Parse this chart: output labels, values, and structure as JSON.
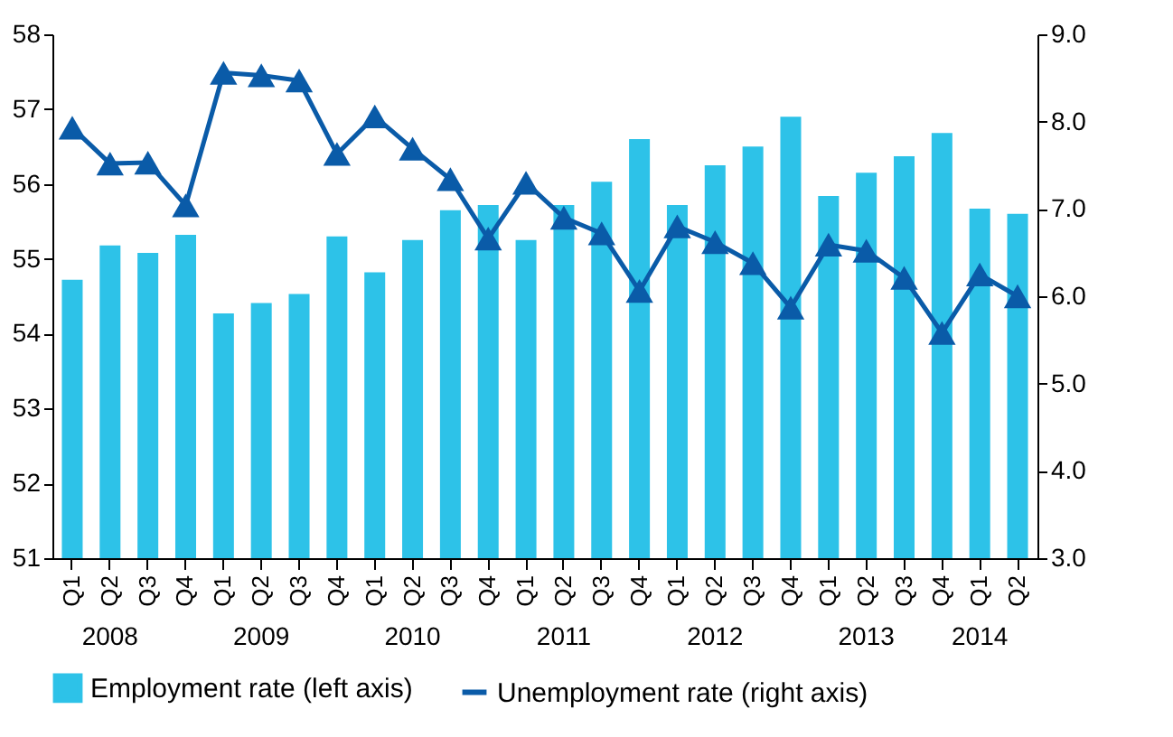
{
  "chart_data": {
    "type": "bar",
    "categories": [
      "Q1",
      "Q2",
      "Q3",
      "Q4",
      "Q1",
      "Q2",
      "Q3",
      "Q4",
      "Q1",
      "Q2",
      "Q3",
      "Q4",
      "Q1",
      "Q2",
      "Q3",
      "Q4",
      "Q1",
      "Q2",
      "Q3",
      "Q4",
      "Q1",
      "Q2",
      "Q3",
      "Q4",
      "Q1",
      "Q2"
    ],
    "annotations": [
      "2008",
      "2009",
      "2010",
      "2011",
      "2012",
      "2013",
      "2014"
    ],
    "series": [
      {
        "name": "Employment rate (left axis)",
        "color": "#2dc2e8",
        "values": [
          54.72,
          55.18,
          55.08,
          55.32,
          54.27,
          54.41,
          54.53,
          55.3,
          54.82,
          55.25,
          55.65,
          55.72,
          55.25,
          55.72,
          56.03,
          56.6,
          55.72,
          56.25,
          56.5,
          56.9,
          55.84,
          56.15,
          56.37,
          56.68,
          55.67,
          55.6
        ]
      },
      {
        "name": "Unemployment rate (right axis)",
        "type": "line",
        "axis": "y2",
        "color": "#0a5ba8",
        "marker": "triangle",
        "values": [
          7.93,
          7.52,
          7.53,
          7.04,
          8.56,
          8.53,
          8.47,
          7.63,
          8.06,
          7.69,
          7.34,
          6.66,
          7.3,
          6.9,
          6.72,
          6.06,
          6.8,
          6.62,
          6.38,
          5.87,
          6.59,
          6.52,
          6.21,
          5.58,
          6.25,
          6.0
        ]
      }
    ],
    "ylim": [
      51,
      58
    ],
    "yticks": [
      51,
      52,
      53,
      54,
      55,
      56,
      57,
      58
    ],
    "y2lim": [
      3,
      9
    ],
    "y2ticks": [
      {
        "value": 3,
        "label": "3.0"
      },
      {
        "value": 4,
        "label": "4.0"
      },
      {
        "value": 5,
        "label": "5.0"
      },
      {
        "value": 6,
        "label": "6.0"
      },
      {
        "value": 7,
        "label": "7.0"
      },
      {
        "value": 8,
        "label": "8.0"
      },
      {
        "value": 9,
        "label": "9.0"
      }
    ],
    "legend": "bottom",
    "grid": false
  }
}
